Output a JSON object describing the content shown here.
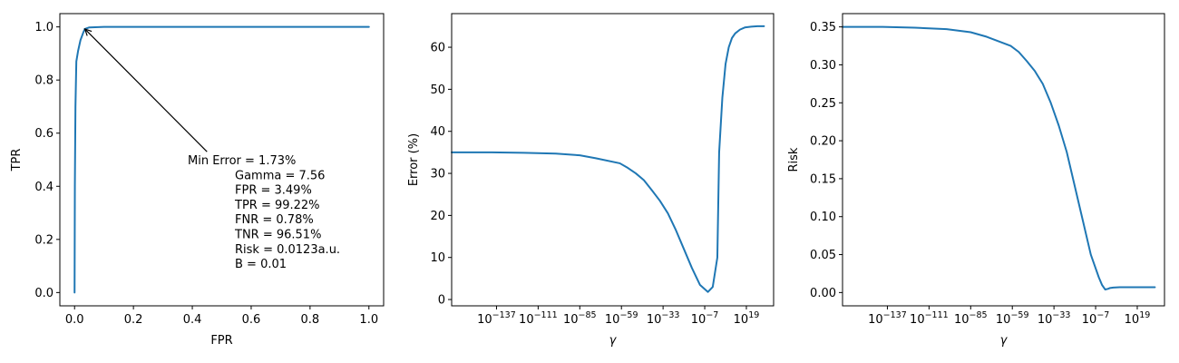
{
  "chart_data": [
    {
      "type": "line",
      "xlabel": "FPR",
      "ylabel": "TPR",
      "xlim": [
        -0.05,
        1.05
      ],
      "ylim": [
        -0.05,
        1.05
      ],
      "x_scale": "linear",
      "xticks": [
        0.0,
        0.2,
        0.4,
        0.6,
        0.8,
        1.0
      ],
      "xtick_labels": [
        "0.0",
        "0.2",
        "0.4",
        "0.6",
        "0.8",
        "1.0"
      ],
      "yticks": [
        0.0,
        0.2,
        0.4,
        0.6,
        0.8,
        1.0
      ],
      "ytick_labels": [
        "0.0",
        "0.2",
        "0.4",
        "0.6",
        "0.8",
        "1.0"
      ],
      "grid": false,
      "series": [
        {
          "color": "#1f77b4",
          "x": [
            0.0,
            0.001,
            0.003,
            0.006,
            0.012,
            0.02,
            0.03,
            0.0349,
            0.05,
            0.1,
            0.3,
            0.6,
            1.0
          ],
          "y": [
            0.0,
            0.4,
            0.7,
            0.87,
            0.91,
            0.95,
            0.98,
            0.9922,
            0.998,
            1.0,
            1.0,
            1.0,
            1.0
          ]
        }
      ],
      "annotation": {
        "lines": [
          "Min Error = 1.73%",
          "Gamma = 7.56",
          "FPR = 3.49%",
          "TPR = 99.22%",
          "FNR = 0.78%",
          "TNR = 96.51%",
          "Risk = 0.0123a.u.",
          "B = 0.01"
        ],
        "point": [
          0.0349,
          0.9922
        ],
        "text_anchor": [
          0.45,
          0.53
        ]
      }
    },
    {
      "type": "line",
      "xlabel": "γ",
      "ylabel": "Error (%)",
      "x_scale": "log",
      "xlim_exp": [
        -165,
        36
      ],
      "ylim": [
        -1.5,
        68
      ],
      "xticks_exp": [
        -137,
        -111,
        -85,
        -59,
        -33,
        -7,
        19
      ],
      "xtick_base": "10",
      "xtick_exponents": [
        "−137",
        "−111",
        "−85",
        "−59",
        "−33",
        "−7",
        "19"
      ],
      "yticks": [
        0,
        10,
        20,
        30,
        40,
        50,
        60
      ],
      "ytick_labels": [
        "0",
        "10",
        "20",
        "30",
        "40",
        "50",
        "60"
      ],
      "grid": false,
      "series": [
        {
          "color": "#1f77b4",
          "x_exp": [
            -165,
            -140,
            -120,
            -100,
            -85,
            -75,
            -60,
            -55,
            -50,
            -45,
            -40,
            -35,
            -30,
            -25,
            -20,
            -15,
            -10,
            -5,
            -2,
            0.88,
            2,
            4,
            6,
            8,
            10,
            12,
            15,
            18,
            22,
            26,
            30
          ],
          "y": [
            35.0,
            35.0,
            34.9,
            34.7,
            34.3,
            33.6,
            32.4,
            31.3,
            30.0,
            28.4,
            26.0,
            23.5,
            20.5,
            16.5,
            12.0,
            7.5,
            3.5,
            1.8,
            3.0,
            10.0,
            35.0,
            48.0,
            56.0,
            60.0,
            62.2,
            63.3,
            64.2,
            64.7,
            64.9,
            65.0,
            65.0
          ]
        }
      ]
    },
    {
      "type": "line",
      "xlabel": "γ",
      "ylabel": "Risk",
      "x_scale": "log",
      "xlim_exp": [
        -165,
        36
      ],
      "ylim": [
        -0.0175,
        0.3675
      ],
      "xticks_exp": [
        -137,
        -111,
        -85,
        -59,
        -33,
        -7,
        19
      ],
      "xtick_base": "10",
      "xtick_exponents": [
        "−137",
        "−111",
        "−85",
        "−59",
        "−33",
        "−7",
        "19"
      ],
      "yticks": [
        0.0,
        0.05,
        0.1,
        0.15,
        0.2,
        0.25,
        0.3,
        0.35
      ],
      "ytick_labels": [
        "0.00",
        "0.05",
        "0.10",
        "0.15",
        "0.20",
        "0.25",
        "0.30",
        "0.35"
      ],
      "grid": false,
      "series": [
        {
          "color": "#1f77b4",
          "x_exp": [
            -165,
            -140,
            -120,
            -100,
            -85,
            -75,
            -60,
            -55,
            -50,
            -45,
            -40,
            -35,
            -30,
            -25,
            -20,
            -15,
            -10,
            -5,
            -3,
            -1,
            0.88,
            2,
            4,
            8,
            15,
            30
          ],
          "y": [
            0.35,
            0.35,
            0.349,
            0.347,
            0.343,
            0.337,
            0.325,
            0.317,
            0.305,
            0.292,
            0.275,
            0.25,
            0.22,
            0.185,
            0.14,
            0.095,
            0.05,
            0.02,
            0.01,
            0.004,
            0.005,
            0.006,
            0.0065,
            0.007,
            0.007,
            0.007
          ]
        }
      ]
    }
  ]
}
